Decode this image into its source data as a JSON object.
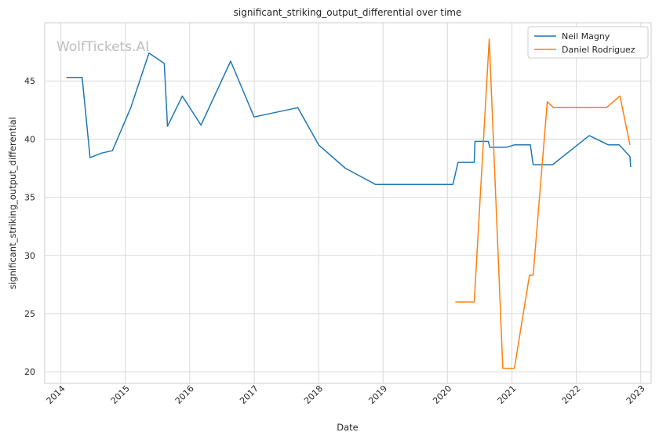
{
  "watermark": "WolfTickets.AI",
  "colors": {
    "neil": "#1f77b4",
    "daniel": "#ff7f0e",
    "grid": "#d9d9d9",
    "frame": "#cccccc"
  },
  "chart_data": {
    "type": "line",
    "title": "significant_striking_output_differential over time",
    "xlabel": "Date",
    "ylabel": "significant_striking_output_differential",
    "x_ticks": [
      "2014",
      "2015",
      "2016",
      "2017",
      "2018",
      "2019",
      "2020",
      "2021",
      "2022",
      "2023"
    ],
    "y_ticks": [
      20,
      25,
      30,
      35,
      40,
      45
    ],
    "xlim": [
      "2013-10-01",
      "2023-03-01"
    ],
    "ylim": [
      19,
      50
    ],
    "grid": true,
    "legend": "top-right",
    "series": [
      {
        "name": "Neil Magny",
        "color": "#1f77b4",
        "points": [
          [
            "2014-02-01",
            45.3
          ],
          [
            "2014-05-01",
            45.3
          ],
          [
            "2014-06-15",
            38.4
          ],
          [
            "2014-08-20",
            38.8
          ],
          [
            "2014-10-20",
            39.0
          ],
          [
            "2015-02-01",
            42.7
          ],
          [
            "2015-05-15",
            47.4
          ],
          [
            "2015-08-10",
            46.5
          ],
          [
            "2015-08-28",
            41.1
          ],
          [
            "2015-11-20",
            43.7
          ],
          [
            "2016-03-05",
            41.2
          ],
          [
            "2016-08-20",
            46.7
          ],
          [
            "2016-12-31",
            41.9
          ],
          [
            "2017-09-05",
            42.7
          ],
          [
            "2018-01-01",
            39.5
          ],
          [
            "2018-06-01",
            37.5
          ],
          [
            "2018-11-20",
            36.1
          ],
          [
            "2020-02-01",
            36.1
          ],
          [
            "2020-03-01",
            38.0
          ],
          [
            "2020-06-01",
            38.0
          ],
          [
            "2020-06-05",
            39.8
          ],
          [
            "2020-08-20",
            39.8
          ],
          [
            "2020-08-28",
            39.3
          ],
          [
            "2020-12-01",
            39.3
          ],
          [
            "2021-01-15",
            39.5
          ],
          [
            "2021-04-15",
            39.5
          ],
          [
            "2021-05-01",
            37.8
          ],
          [
            "2021-08-20",
            37.8
          ],
          [
            "2022-03-15",
            40.3
          ],
          [
            "2022-07-01",
            39.5
          ],
          [
            "2022-09-01",
            39.5
          ],
          [
            "2022-11-01",
            38.5
          ],
          [
            "2022-11-05",
            37.6
          ]
        ]
      },
      {
        "name": "Daniel Rodriguez",
        "color": "#ff7f0e",
        "points": [
          [
            "2020-02-15",
            26.0
          ],
          [
            "2020-06-01",
            26.0
          ],
          [
            "2020-08-25",
            48.6
          ],
          [
            "2020-11-10",
            20.3
          ],
          [
            "2021-01-15",
            20.3
          ],
          [
            "2021-04-10",
            28.3
          ],
          [
            "2021-05-01",
            28.3
          ],
          [
            "2021-07-20",
            43.2
          ],
          [
            "2021-08-25",
            42.7
          ],
          [
            "2022-06-20",
            42.7
          ],
          [
            "2022-09-05",
            43.7
          ],
          [
            "2022-11-01",
            39.5
          ]
        ]
      }
    ]
  }
}
